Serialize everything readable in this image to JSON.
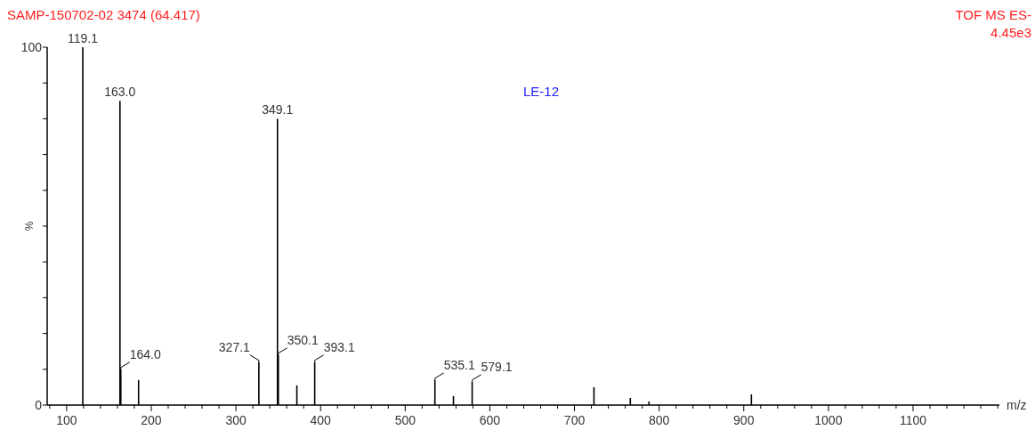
{
  "chart_data": {
    "type": "bar",
    "title": "SAMP-150702-02 3474 (64.417)",
    "xlabel": "m/z",
    "ylabel": "%",
    "x": [
      119.1,
      163.0,
      164.0,
      185,
      327.1,
      349.1,
      350.1,
      372,
      393.1,
      535.1,
      557,
      579.1,
      723,
      766,
      788,
      909
    ],
    "values": [
      100,
      85,
      10,
      7,
      12,
      80,
      14,
      5.5,
      12,
      7,
      2.5,
      6.5,
      5,
      2,
      1,
      3
    ],
    "color": "#000000",
    "xlim": [
      77,
      1202
    ],
    "xticks": [
      {
        "value": 80,
        "label": null
      },
      100,
      {
        "value": 120,
        "label": null
      },
      {
        "value": 140,
        "label": null
      },
      {
        "value": 160,
        "label": null
      },
      {
        "value": 180,
        "label": null
      },
      200,
      {
        "value": 220,
        "label": null
      },
      {
        "value": 240,
        "label": null
      },
      {
        "value": 260,
        "label": null
      },
      {
        "value": 280,
        "label": null
      },
      300,
      {
        "value": 320,
        "label": null
      },
      {
        "value": 340,
        "label": null
      },
      {
        "value": 360,
        "label": null
      },
      {
        "value": 380,
        "label": null
      },
      400,
      {
        "value": 420,
        "label": null
      },
      {
        "value": 440,
        "label": null
      },
      {
        "value": 460,
        "label": null
      },
      {
        "value": 480,
        "label": null
      },
      500,
      {
        "value": 520,
        "label": null
      },
      {
        "value": 540,
        "label": null
      },
      {
        "value": 560,
        "label": null
      },
      {
        "value": 580,
        "label": null
      },
      600,
      {
        "value": 620,
        "label": null
      },
      {
        "value": 640,
        "label": null
      },
      {
        "value": 660,
        "label": null
      },
      {
        "value": 680,
        "label": null
      },
      700,
      {
        "value": 720,
        "label": null
      },
      {
        "value": 740,
        "label": null
      },
      {
        "value": 760,
        "label": null
      },
      {
        "value": 780,
        "label": null
      },
      800,
      {
        "value": 820,
        "label": null
      },
      {
        "value": 840,
        "label": null
      },
      {
        "value": 860,
        "label": null
      },
      {
        "value": 880,
        "label": null
      },
      900,
      {
        "value": 920,
        "label": null
      },
      {
        "value": 940,
        "label": null
      },
      {
        "value": 960,
        "label": null
      },
      {
        "value": 980,
        "label": null
      },
      1000,
      {
        "value": 1020,
        "label": null
      },
      {
        "value": 1040,
        "label": null
      },
      {
        "value": 1060,
        "label": null
      },
      {
        "value": 1080,
        "label": null
      },
      1100,
      {
        "value": 1120,
        "label": null
      },
      {
        "value": 1140,
        "label": null
      },
      {
        "value": 1160,
        "label": null
      },
      {
        "value": 1180,
        "label": null
      },
      {
        "value": 1200,
        "label": null
      }
    ],
    "ylim": [
      0,
      100
    ],
    "yticks": [
      0,
      {
        "value": 10,
        "label": null
      },
      {
        "value": 20,
        "label": null
      },
      {
        "value": 30,
        "label": null
      },
      {
        "value": 40,
        "label": null
      },
      {
        "value": 50,
        "label": null
      },
      {
        "value": 60,
        "label": null
      },
      {
        "value": 70,
        "label": null
      },
      {
        "value": 80,
        "label": null
      },
      {
        "value": 90,
        "label": null
      },
      100
    ],
    "grid": false,
    "annotations": [
      {
        "text": "119.1",
        "x": 119.1,
        "y": 100
      },
      {
        "text": "163.0",
        "x": 163.0,
        "y": 85
      },
      {
        "text": "164.0",
        "x": 164.0,
        "y": 10
      },
      {
        "text": "327.1",
        "x": 327.1,
        "y": 12
      },
      {
        "text": "349.1",
        "x": 349.1,
        "y": 80
      },
      {
        "text": "350.1",
        "x": 350.1,
        "y": 14
      },
      {
        "text": "393.1",
        "x": 393.1,
        "y": 12
      },
      {
        "text": "535.1",
        "x": 535.1,
        "y": 7
      },
      {
        "text": "579.1",
        "x": 579.1,
        "y": 6.5
      },
      "LE-12",
      "TOF MS ES-",
      "4.45e3"
    ]
  }
}
